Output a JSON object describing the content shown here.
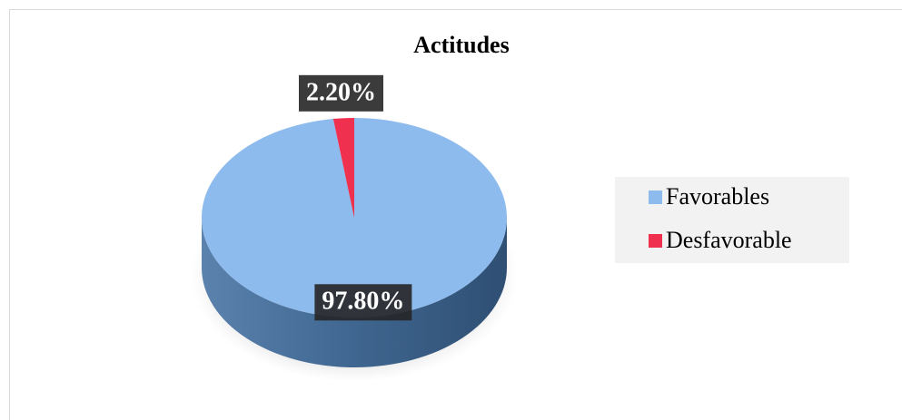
{
  "chart_data": {
    "type": "pie",
    "title": "Actitudes",
    "categories": [
      "Favorables",
      "Desfavorable"
    ],
    "values": [
      97.8,
      2.2
    ],
    "value_labels": [
      "97.80%",
      "2.20%"
    ],
    "colors": [
      "#8ebbed",
      "#f0304f"
    ],
    "legend": "right"
  }
}
